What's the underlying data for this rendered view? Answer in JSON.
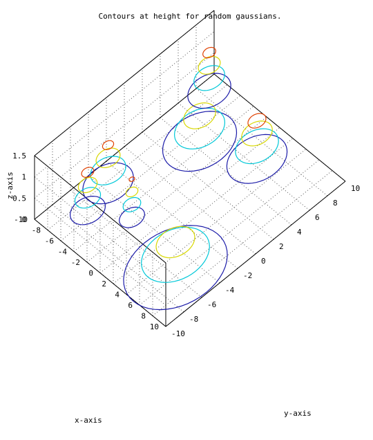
{
  "chart_data": {
    "type": "contour3d",
    "title": "Contours at height for random gaussians.",
    "xlabel": "x-axis",
    "ylabel": "y-axis",
    "zlabel": "z-axis",
    "xlim": [
      -10,
      10
    ],
    "ylim": [
      -10,
      10
    ],
    "zlim": [
      0,
      1.5
    ],
    "xticks": [
      "-10",
      "-8",
      "-6",
      "-4",
      "-2",
      "0",
      "2",
      "4",
      "6",
      "8",
      "10"
    ],
    "yticks": [
      "-10",
      "-8",
      "-6",
      "-4",
      "-2",
      "0",
      "2",
      "4",
      "6",
      "8",
      "10"
    ],
    "zticks": [
      "0",
      "0.5",
      "1",
      "1.5"
    ],
    "grid": true,
    "levels": [
      {
        "z": 0.2,
        "color": "#1a1aa8"
      },
      {
        "z": 0.5,
        "color": "#00c8d8"
      },
      {
        "z": 0.8,
        "color": "#d8d800"
      },
      {
        "z": 1.1,
        "color": "#e04000"
      }
    ]
  }
}
